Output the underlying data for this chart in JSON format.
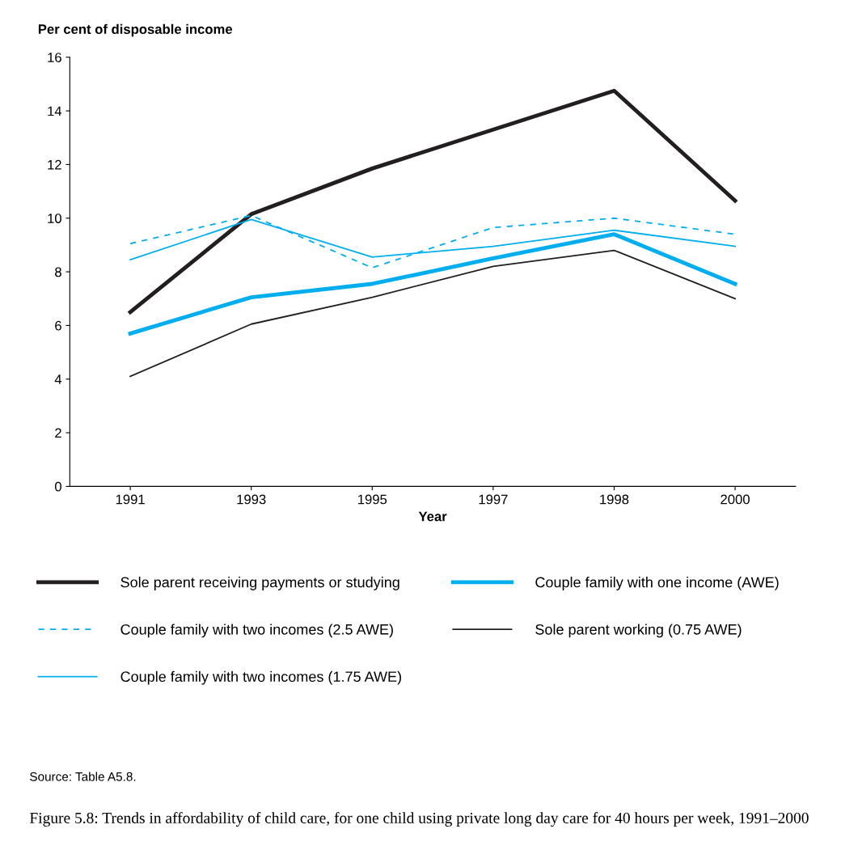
{
  "chart_data": {
    "type": "line",
    "ylabel": "Per cent of disposable income",
    "xlabel": "Year",
    "categories": [
      "1991",
      "1993",
      "1995",
      "1997",
      "1998",
      "2000"
    ],
    "ylim": [
      0,
      16
    ],
    "yticks": [
      0,
      2,
      4,
      6,
      8,
      10,
      12,
      14,
      16
    ],
    "grid": false,
    "legend": "bottom",
    "marker": "none",
    "line_style": "solid",
    "series": [
      {
        "name": "Sole parent receiving payments or studying",
        "color": "#231f20",
        "values": [
          6.5,
          10.15,
          11.85,
          13.3,
          14.75,
          10.65
        ]
      },
      {
        "name": "Couple family with two incomes (2.5 AWE)",
        "color": "#00aeef",
        "line_style": "dashed",
        "values": [
          9.05,
          10.1,
          8.15,
          9.65,
          10.0,
          9.4
        ]
      },
      {
        "name": "Couple family with two incomes (1.75 AWE)",
        "color": "#00aeef",
        "values": [
          8.45,
          9.95,
          8.55,
          8.95,
          9.55,
          8.95
        ]
      },
      {
        "name": "Couple family with one income (AWE)",
        "color": "#00aeef",
        "values": [
          5.7,
          7.05,
          7.55,
          8.5,
          9.4,
          7.55
        ]
      },
      {
        "name": "Sole parent working (0.75 AWE)",
        "color": "#231f20",
        "values": [
          4.1,
          6.05,
          7.05,
          8.2,
          8.8,
          7.0
        ]
      }
    ],
    "annotations": [
      "Source: Table A5.8.",
      "Figure 5.8: Trends in affordability of child care, for one child using private long day care for 40 hours per week, 1991–2000"
    ]
  }
}
